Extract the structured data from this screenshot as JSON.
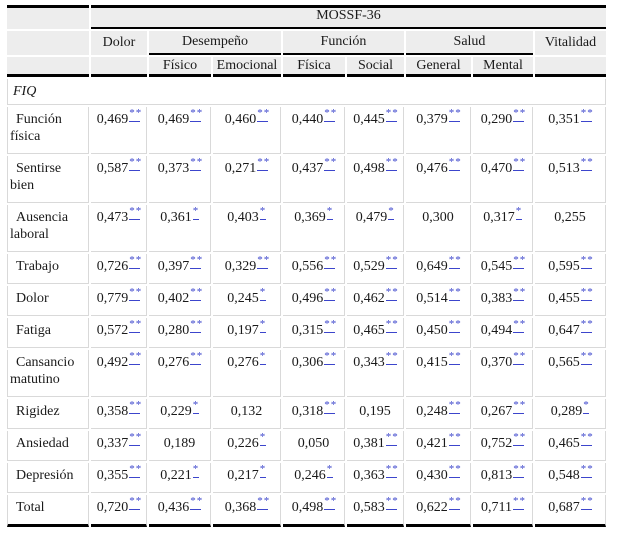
{
  "colors": {
    "link_blue": "#3c45cc",
    "header_bg": "#ededed",
    "grid_gray": "#d9d9d9",
    "rule_black": "#000000"
  },
  "table": {
    "title": "MOSSF-36",
    "section_label": "FIQ",
    "groups": [
      {
        "label": "Dolor",
        "span": 1
      },
      {
        "label": "Desempeño",
        "span": 2
      },
      {
        "label": "Función",
        "span": 2
      },
      {
        "label": "Salud",
        "span": 2
      },
      {
        "label": "Vitalidad",
        "span": 1
      }
    ],
    "subheaders": [
      "",
      "Físico",
      "Emocional",
      "Física",
      "Social",
      "General",
      "Mental",
      ""
    ],
    "significance_legend": {
      "one_star": "*",
      "two_star": "**"
    },
    "rows": [
      {
        "label": "Función física",
        "cells": [
          {
            "v": "0,469",
            "sig": "**"
          },
          {
            "v": "0,469",
            "sig": "**"
          },
          {
            "v": "0,460",
            "sig": "**"
          },
          {
            "v": "0,440",
            "sig": "**"
          },
          {
            "v": "0,445",
            "sig": "**"
          },
          {
            "v": "0,379",
            "sig": "**"
          },
          {
            "v": "0,290",
            "sig": "**"
          },
          {
            "v": "0,351",
            "sig": "**"
          }
        ]
      },
      {
        "label": "Sentirse bien",
        "cells": [
          {
            "v": "0,587",
            "sig": "**"
          },
          {
            "v": "0,373",
            "sig": "**"
          },
          {
            "v": "0,271",
            "sig": "**"
          },
          {
            "v": "0,437",
            "sig": "**"
          },
          {
            "v": "0,498",
            "sig": "**"
          },
          {
            "v": "0,476",
            "sig": "**"
          },
          {
            "v": "0,470",
            "sig": "**"
          },
          {
            "v": "0,513",
            "sig": "**"
          }
        ]
      },
      {
        "label": "Ausencia laboral",
        "cells": [
          {
            "v": "0,473",
            "sig": "**"
          },
          {
            "v": "0,361",
            "sig": "*"
          },
          {
            "v": "0,403",
            "sig": "*"
          },
          {
            "v": "0,369",
            "sig": "*"
          },
          {
            "v": "0,479",
            "sig": "*"
          },
          {
            "v": "0,300",
            "sig": ""
          },
          {
            "v": "0,317",
            "sig": "*"
          },
          {
            "v": "0,255",
            "sig": ""
          }
        ]
      },
      {
        "label": "Trabajo",
        "cells": [
          {
            "v": "0,726",
            "sig": "**"
          },
          {
            "v": "0,397",
            "sig": "**"
          },
          {
            "v": "0,329",
            "sig": "**"
          },
          {
            "v": "0,556",
            "sig": "**"
          },
          {
            "v": "0,529",
            "sig": "**"
          },
          {
            "v": "0,649",
            "sig": "**"
          },
          {
            "v": "0,545",
            "sig": "**"
          },
          {
            "v": "0,595",
            "sig": "**"
          }
        ]
      },
      {
        "label": "Dolor",
        "cells": [
          {
            "v": "0,779",
            "sig": "**"
          },
          {
            "v": "0,402",
            "sig": "**"
          },
          {
            "v": "0,245",
            "sig": "*"
          },
          {
            "v": "0,496",
            "sig": "**"
          },
          {
            "v": "0,462",
            "sig": "**"
          },
          {
            "v": "0,514",
            "sig": "**"
          },
          {
            "v": "0,383",
            "sig": "**"
          },
          {
            "v": "0,455",
            "sig": "**"
          }
        ]
      },
      {
        "label": "Fatiga",
        "cells": [
          {
            "v": "0,572",
            "sig": "**"
          },
          {
            "v": "0,280",
            "sig": "**"
          },
          {
            "v": "0,197",
            "sig": "*"
          },
          {
            "v": "0,315",
            "sig": "**"
          },
          {
            "v": "0,465",
            "sig": "**"
          },
          {
            "v": "0,450",
            "sig": "**"
          },
          {
            "v": "0,494",
            "sig": "**"
          },
          {
            "v": "0,647",
            "sig": "**"
          }
        ]
      },
      {
        "label": "Cansancio matutino",
        "cells": [
          {
            "v": "0,492",
            "sig": "**"
          },
          {
            "v": "0,276",
            "sig": "**"
          },
          {
            "v": "0,276",
            "sig": "*"
          },
          {
            "v": "0,306",
            "sig": "**"
          },
          {
            "v": "0,343",
            "sig": "**"
          },
          {
            "v": "0,415",
            "sig": "**"
          },
          {
            "v": "0,370",
            "sig": "**"
          },
          {
            "v": "0,565",
            "sig": "**"
          }
        ]
      },
      {
        "label": "Rigidez",
        "cells": [
          {
            "v": "0,358",
            "sig": "**"
          },
          {
            "v": "0,229",
            "sig": "*"
          },
          {
            "v": "0,132",
            "sig": ""
          },
          {
            "v": "0,318",
            "sig": "**"
          },
          {
            "v": "0,195",
            "sig": ""
          },
          {
            "v": "0,248",
            "sig": "**"
          },
          {
            "v": "0,267",
            "sig": "**"
          },
          {
            "v": "0,289",
            "sig": "*"
          }
        ]
      },
      {
        "label": "Ansiedad",
        "cells": [
          {
            "v": "0,337",
            "sig": "**"
          },
          {
            "v": "0,189",
            "sig": ""
          },
          {
            "v": "0,226",
            "sig": "*"
          },
          {
            "v": "0,050",
            "sig": ""
          },
          {
            "v": "0,381",
            "sig": "**"
          },
          {
            "v": "0,421",
            "sig": "**"
          },
          {
            "v": "0,752",
            "sig": "**"
          },
          {
            "v": "0,465",
            "sig": "**"
          }
        ]
      },
      {
        "label": "Depresión",
        "cells": [
          {
            "v": "0,355",
            "sig": "**"
          },
          {
            "v": "0,221",
            "sig": "*"
          },
          {
            "v": "0,217",
            "sig": "*"
          },
          {
            "v": "0,246",
            "sig": "*"
          },
          {
            "v": "0,363",
            "sig": "**"
          },
          {
            "v": "0,430",
            "sig": "**"
          },
          {
            "v": "0,813",
            "sig": "**"
          },
          {
            "v": "0,548",
            "sig": "**"
          }
        ]
      },
      {
        "label": "Total",
        "cells": [
          {
            "v": "0,720",
            "sig": "**"
          },
          {
            "v": "0,436",
            "sig": "**"
          },
          {
            "v": "0,368",
            "sig": "**"
          },
          {
            "v": "0,498",
            "sig": "**"
          },
          {
            "v": "0,583",
            "sig": "**"
          },
          {
            "v": "0,622",
            "sig": "**"
          },
          {
            "v": "0,711",
            "sig": "**"
          },
          {
            "v": "0,687",
            "sig": "**"
          }
        ]
      }
    ]
  }
}
